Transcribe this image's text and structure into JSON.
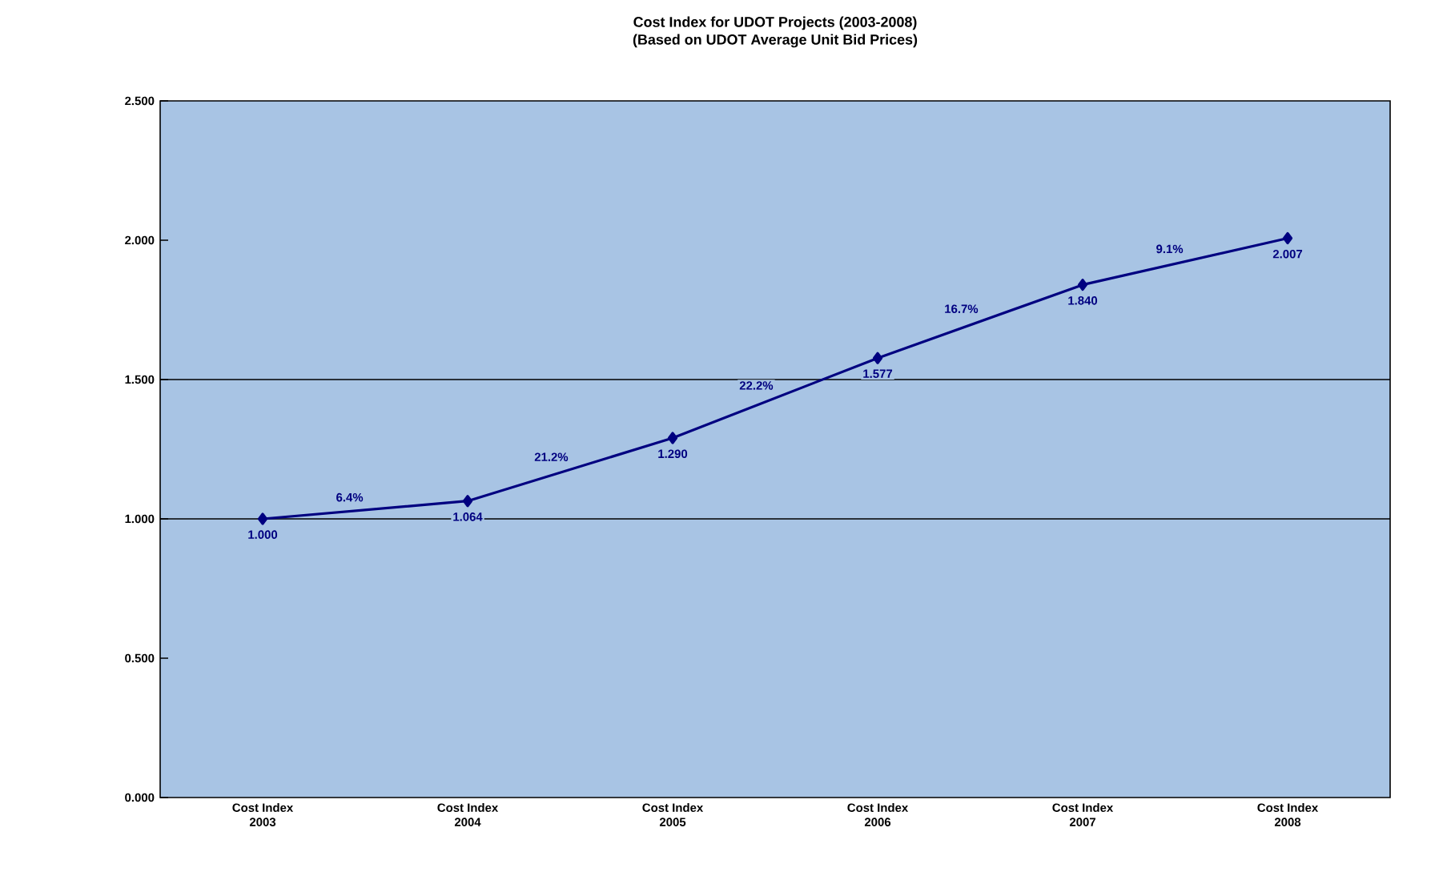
{
  "chart_data": {
    "type": "line",
    "title": "Cost Index for UDOT Projects (2003-2008)",
    "subtitle": "(Based on UDOT Average Unit Bid Prices)",
    "categories": [
      "Cost Index\n2003",
      "Cost Index\n2004",
      "Cost Index\n2005",
      "Cost Index\n2006",
      "Cost Index\n2007",
      "Cost Index\n2008"
    ],
    "series": [
      {
        "color": "#000080",
        "values": [
          1.0,
          1.064,
          1.29,
          1.577,
          1.84,
          2.007
        ],
        "value_labels": [
          "1.000",
          "1.064",
          "1.290",
          "1.577",
          "1.840",
          "2.007"
        ]
      }
    ],
    "annotations": [
      "6.4%",
      "21.2%",
      "22.2%",
      "16.7%",
      "9.1%"
    ],
    "ylim": [
      0,
      2.5
    ],
    "yticks": [
      {
        "value": 0,
        "label": "0.000"
      },
      {
        "value": 0.5,
        "label": "0.500"
      },
      {
        "value": 1,
        "label": "1.000"
      },
      {
        "value": 1.5,
        "label": "1.500"
      },
      {
        "value": 2,
        "label": "2.000"
      },
      {
        "value": 2.5,
        "label": "2.500"
      }
    ],
    "ref_lines": [
      {
        "axis": "y",
        "value": 1,
        "color": "#000000"
      },
      {
        "axis": "y",
        "value": 1.5,
        "color": "#000000"
      }
    ],
    "marker": "diamond",
    "line_style": "solid"
  }
}
